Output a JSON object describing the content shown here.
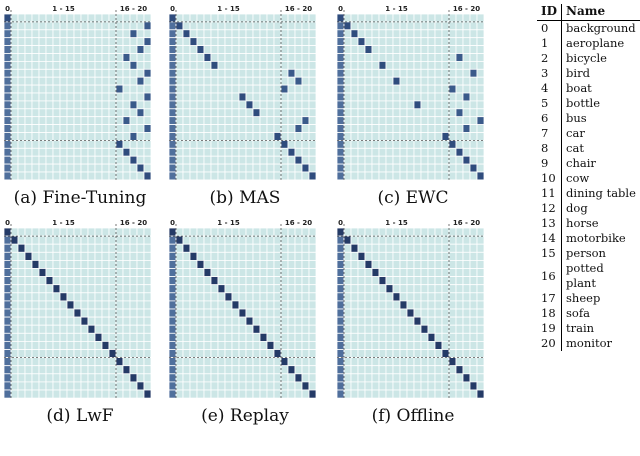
{
  "panels": [
    {
      "id": "fine-tuning",
      "caption": "(a) Fine-Tuning",
      "tick_left": "0",
      "tick_mid": "1 - 15",
      "tick_right": "16 - 20",
      "active": [
        [
          0,
          0
        ],
        [
          1,
          20
        ],
        [
          2,
          18
        ],
        [
          3,
          20
        ],
        [
          4,
          19
        ],
        [
          5,
          17
        ],
        [
          6,
          18
        ],
        [
          7,
          20
        ],
        [
          8,
          19
        ],
        [
          9,
          16
        ],
        [
          10,
          20
        ],
        [
          11,
          18
        ],
        [
          12,
          19
        ],
        [
          13,
          17
        ],
        [
          14,
          20
        ],
        [
          15,
          18
        ],
        [
          16,
          16
        ],
        [
          17,
          17
        ],
        [
          18,
          18
        ],
        [
          19,
          19
        ],
        [
          20,
          20
        ]
      ]
    },
    {
      "id": "mas",
      "caption": "(b) MAS",
      "tick_left": "0",
      "tick_mid": "1 - 15",
      "tick_right": "16 - 20",
      "active": [
        [
          0,
          0
        ],
        [
          1,
          1
        ],
        [
          2,
          2
        ],
        [
          3,
          3
        ],
        [
          4,
          4
        ],
        [
          5,
          5
        ],
        [
          6,
          6
        ],
        [
          7,
          17
        ],
        [
          8,
          18
        ],
        [
          9,
          16
        ],
        [
          10,
          10
        ],
        [
          11,
          11
        ],
        [
          12,
          12
        ],
        [
          13,
          19
        ],
        [
          14,
          18
        ],
        [
          15,
          15
        ],
        [
          16,
          16
        ],
        [
          17,
          17
        ],
        [
          18,
          18
        ],
        [
          19,
          19
        ],
        [
          20,
          20
        ]
      ]
    },
    {
      "id": "ewc",
      "caption": "(c) EWC",
      "tick_left": "0",
      "tick_mid": "1 - 15",
      "tick_right": "16 - 20",
      "active": [
        [
          0,
          0
        ],
        [
          1,
          1
        ],
        [
          2,
          2
        ],
        [
          3,
          3
        ],
        [
          4,
          4
        ],
        [
          5,
          17
        ],
        [
          6,
          6
        ],
        [
          7,
          19
        ],
        [
          8,
          8
        ],
        [
          9,
          16
        ],
        [
          10,
          18
        ],
        [
          11,
          11
        ],
        [
          12,
          17
        ],
        [
          13,
          20
        ],
        [
          14,
          18
        ],
        [
          15,
          15
        ],
        [
          16,
          16
        ],
        [
          17,
          17
        ],
        [
          18,
          18
        ],
        [
          19,
          19
        ],
        [
          20,
          20
        ]
      ]
    },
    {
      "id": "lwf",
      "caption": "(d) LwF",
      "tick_left": "0",
      "tick_mid": "1 - 15",
      "tick_right": "16 - 20",
      "active": [
        [
          0,
          0
        ],
        [
          1,
          1
        ],
        [
          2,
          2
        ],
        [
          3,
          3
        ],
        [
          4,
          4
        ],
        [
          5,
          5
        ],
        [
          6,
          6
        ],
        [
          7,
          7
        ],
        [
          8,
          8
        ],
        [
          9,
          9
        ],
        [
          10,
          10
        ],
        [
          11,
          11
        ],
        [
          12,
          12
        ],
        [
          13,
          13
        ],
        [
          14,
          14
        ],
        [
          15,
          15
        ],
        [
          16,
          16
        ],
        [
          17,
          17
        ],
        [
          18,
          18
        ],
        [
          19,
          19
        ],
        [
          20,
          20
        ]
      ]
    },
    {
      "id": "replay",
      "caption": "(e) Replay",
      "tick_left": "0",
      "tick_mid": "1 - 15",
      "tick_right": "16 - 20",
      "active": [
        [
          0,
          0
        ],
        [
          1,
          1
        ],
        [
          2,
          2
        ],
        [
          3,
          3
        ],
        [
          4,
          4
        ],
        [
          5,
          5
        ],
        [
          6,
          6
        ],
        [
          7,
          7
        ],
        [
          8,
          8
        ],
        [
          9,
          9
        ],
        [
          10,
          10
        ],
        [
          11,
          11
        ],
        [
          12,
          12
        ],
        [
          13,
          13
        ],
        [
          14,
          14
        ],
        [
          15,
          15
        ],
        [
          16,
          16
        ],
        [
          17,
          17
        ],
        [
          18,
          18
        ],
        [
          19,
          19
        ],
        [
          20,
          20
        ]
      ]
    },
    {
      "id": "offline",
      "caption": "(f) Offline",
      "tick_left": "0",
      "tick_mid": "1 - 15",
      "tick_right": "16 - 20",
      "active": [
        [
          0,
          0
        ],
        [
          1,
          1
        ],
        [
          2,
          2
        ],
        [
          3,
          3
        ],
        [
          4,
          4
        ],
        [
          5,
          5
        ],
        [
          6,
          6
        ],
        [
          7,
          7
        ],
        [
          8,
          8
        ],
        [
          9,
          9
        ],
        [
          10,
          10
        ],
        [
          11,
          11
        ],
        [
          12,
          12
        ],
        [
          13,
          13
        ],
        [
          14,
          14
        ],
        [
          15,
          15
        ],
        [
          16,
          16
        ],
        [
          17,
          17
        ],
        [
          18,
          18
        ],
        [
          19,
          19
        ],
        [
          20,
          20
        ]
      ]
    }
  ],
  "legend": {
    "col_id": "ID",
    "col_name": "Name",
    "rows": [
      {
        "id": "0",
        "name": "background"
      },
      {
        "id": "1",
        "name": "aeroplane"
      },
      {
        "id": "2",
        "name": "bicycle"
      },
      {
        "id": "3",
        "name": "bird"
      },
      {
        "id": "4",
        "name": "boat"
      },
      {
        "id": "5",
        "name": "bottle"
      },
      {
        "id": "6",
        "name": "bus"
      },
      {
        "id": "7",
        "name": "car"
      },
      {
        "id": "8",
        "name": "cat"
      },
      {
        "id": "9",
        "name": "chair"
      },
      {
        "id": "10",
        "name": "cow"
      },
      {
        "id": "11",
        "name": "dining table"
      },
      {
        "id": "12",
        "name": "dog"
      },
      {
        "id": "13",
        "name": "horse"
      },
      {
        "id": "14",
        "name": "motorbike"
      },
      {
        "id": "15",
        "name": "person"
      },
      {
        "id": "16",
        "name": "potted plant"
      },
      {
        "id": "17",
        "name": "sheep"
      },
      {
        "id": "18",
        "name": "sofa"
      },
      {
        "id": "19",
        "name": "train"
      },
      {
        "id": "20",
        "name": "monitor"
      }
    ]
  },
  "colors": {
    "cell_base": "#cce6e6",
    "cell_dark": "#243a66",
    "grid_line": "#ffffff",
    "divider": "#555555",
    "first_column": "#4f6f9c"
  }
}
